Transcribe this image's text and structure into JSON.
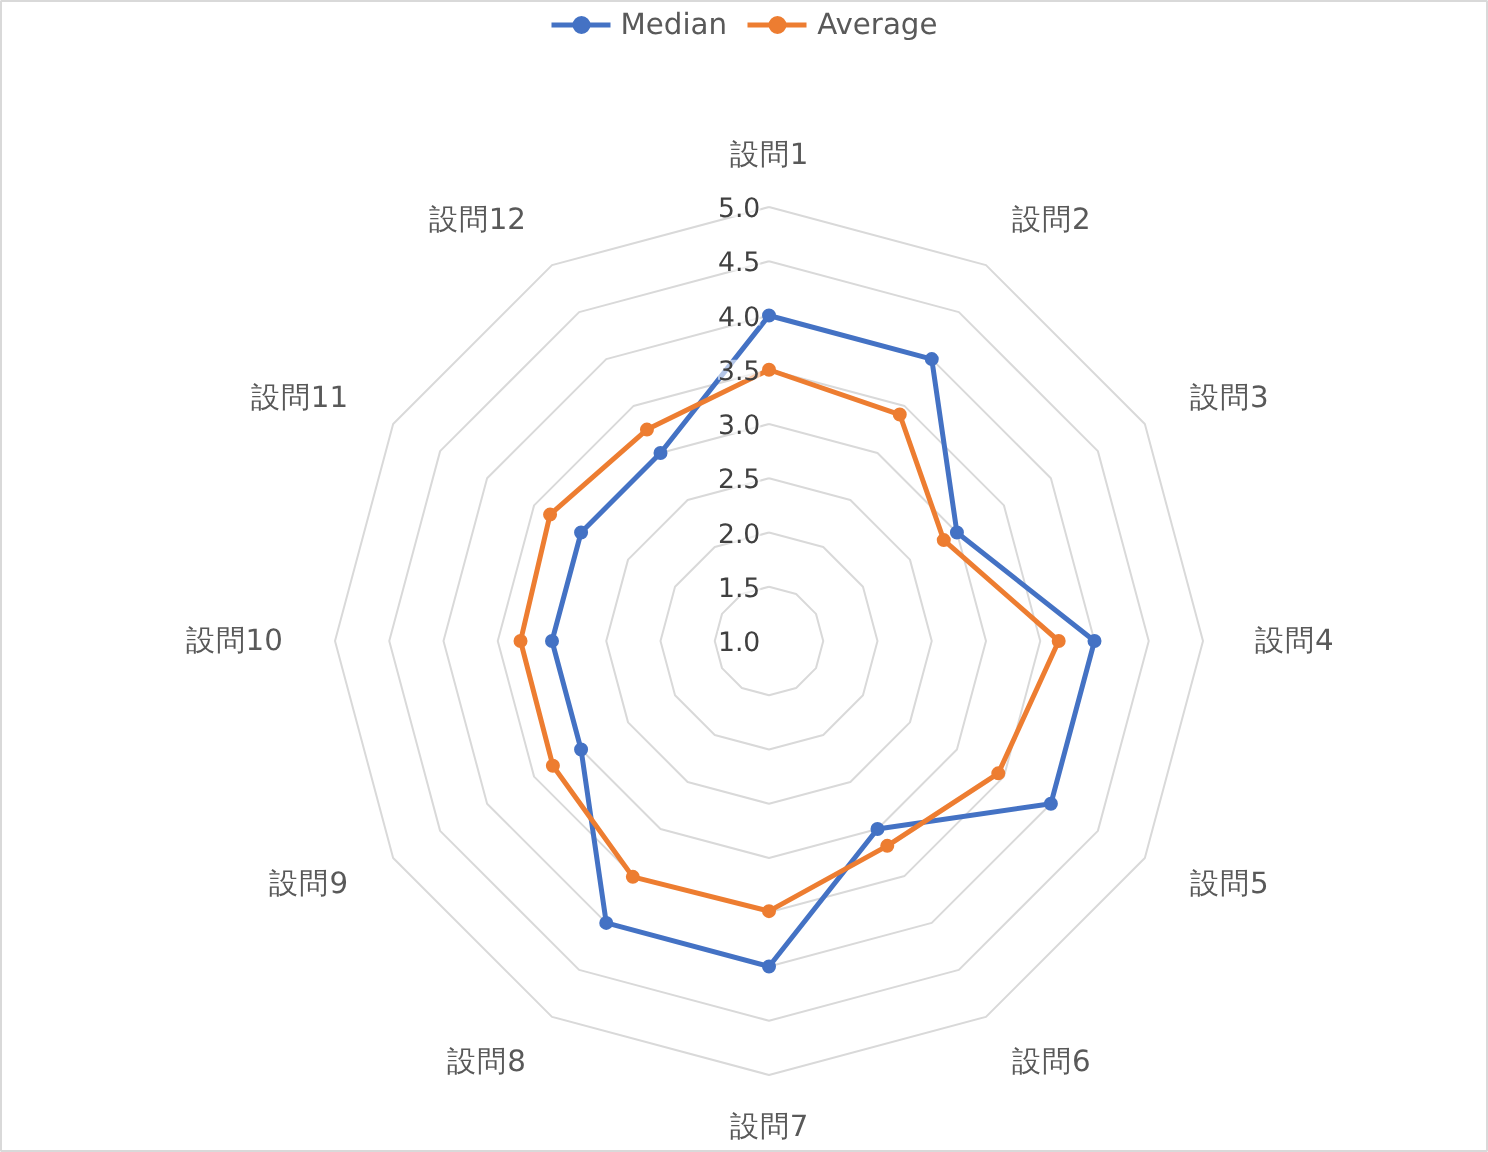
{
  "chart_data": {
    "type": "radar",
    "categories": [
      "設問1",
      "設問2",
      "設問3",
      "設問4",
      "設問5",
      "設問6",
      "設問7",
      "設問8",
      "設問9",
      "設問10",
      "設問11",
      "設問12"
    ],
    "series": [
      {
        "name": "Median",
        "color": "#4472c4",
        "values": [
          4.0,
          4.0,
          3.0,
          4.0,
          4.0,
          3.0,
          4.0,
          4.0,
          3.0,
          3.0,
          3.0,
          3.0
        ]
      },
      {
        "name": "Average",
        "color": "#ed7d31",
        "values": [
          3.5,
          3.41,
          2.86,
          3.67,
          3.44,
          3.18,
          3.49,
          3.51,
          3.3,
          3.29,
          3.33,
          3.25
        ]
      }
    ],
    "ylim": [
      1.0,
      5.0
    ],
    "yticks": [
      {
        "value": 1,
        "label": "1.0"
      },
      {
        "value": 1.5,
        "label": "1.5"
      },
      {
        "value": 2,
        "label": "2.0"
      },
      {
        "value": 2.5,
        "label": "2.5"
      },
      {
        "value": 3,
        "label": "3.0"
      },
      {
        "value": 3.5,
        "label": "3.5"
      },
      {
        "value": 4,
        "label": "4.0"
      },
      {
        "value": 4.5,
        "label": "4.5"
      },
      {
        "value": 5,
        "label": "5.0"
      }
    ],
    "grid": true,
    "legend": "top",
    "marker": "circle",
    "line_style": "solid"
  }
}
